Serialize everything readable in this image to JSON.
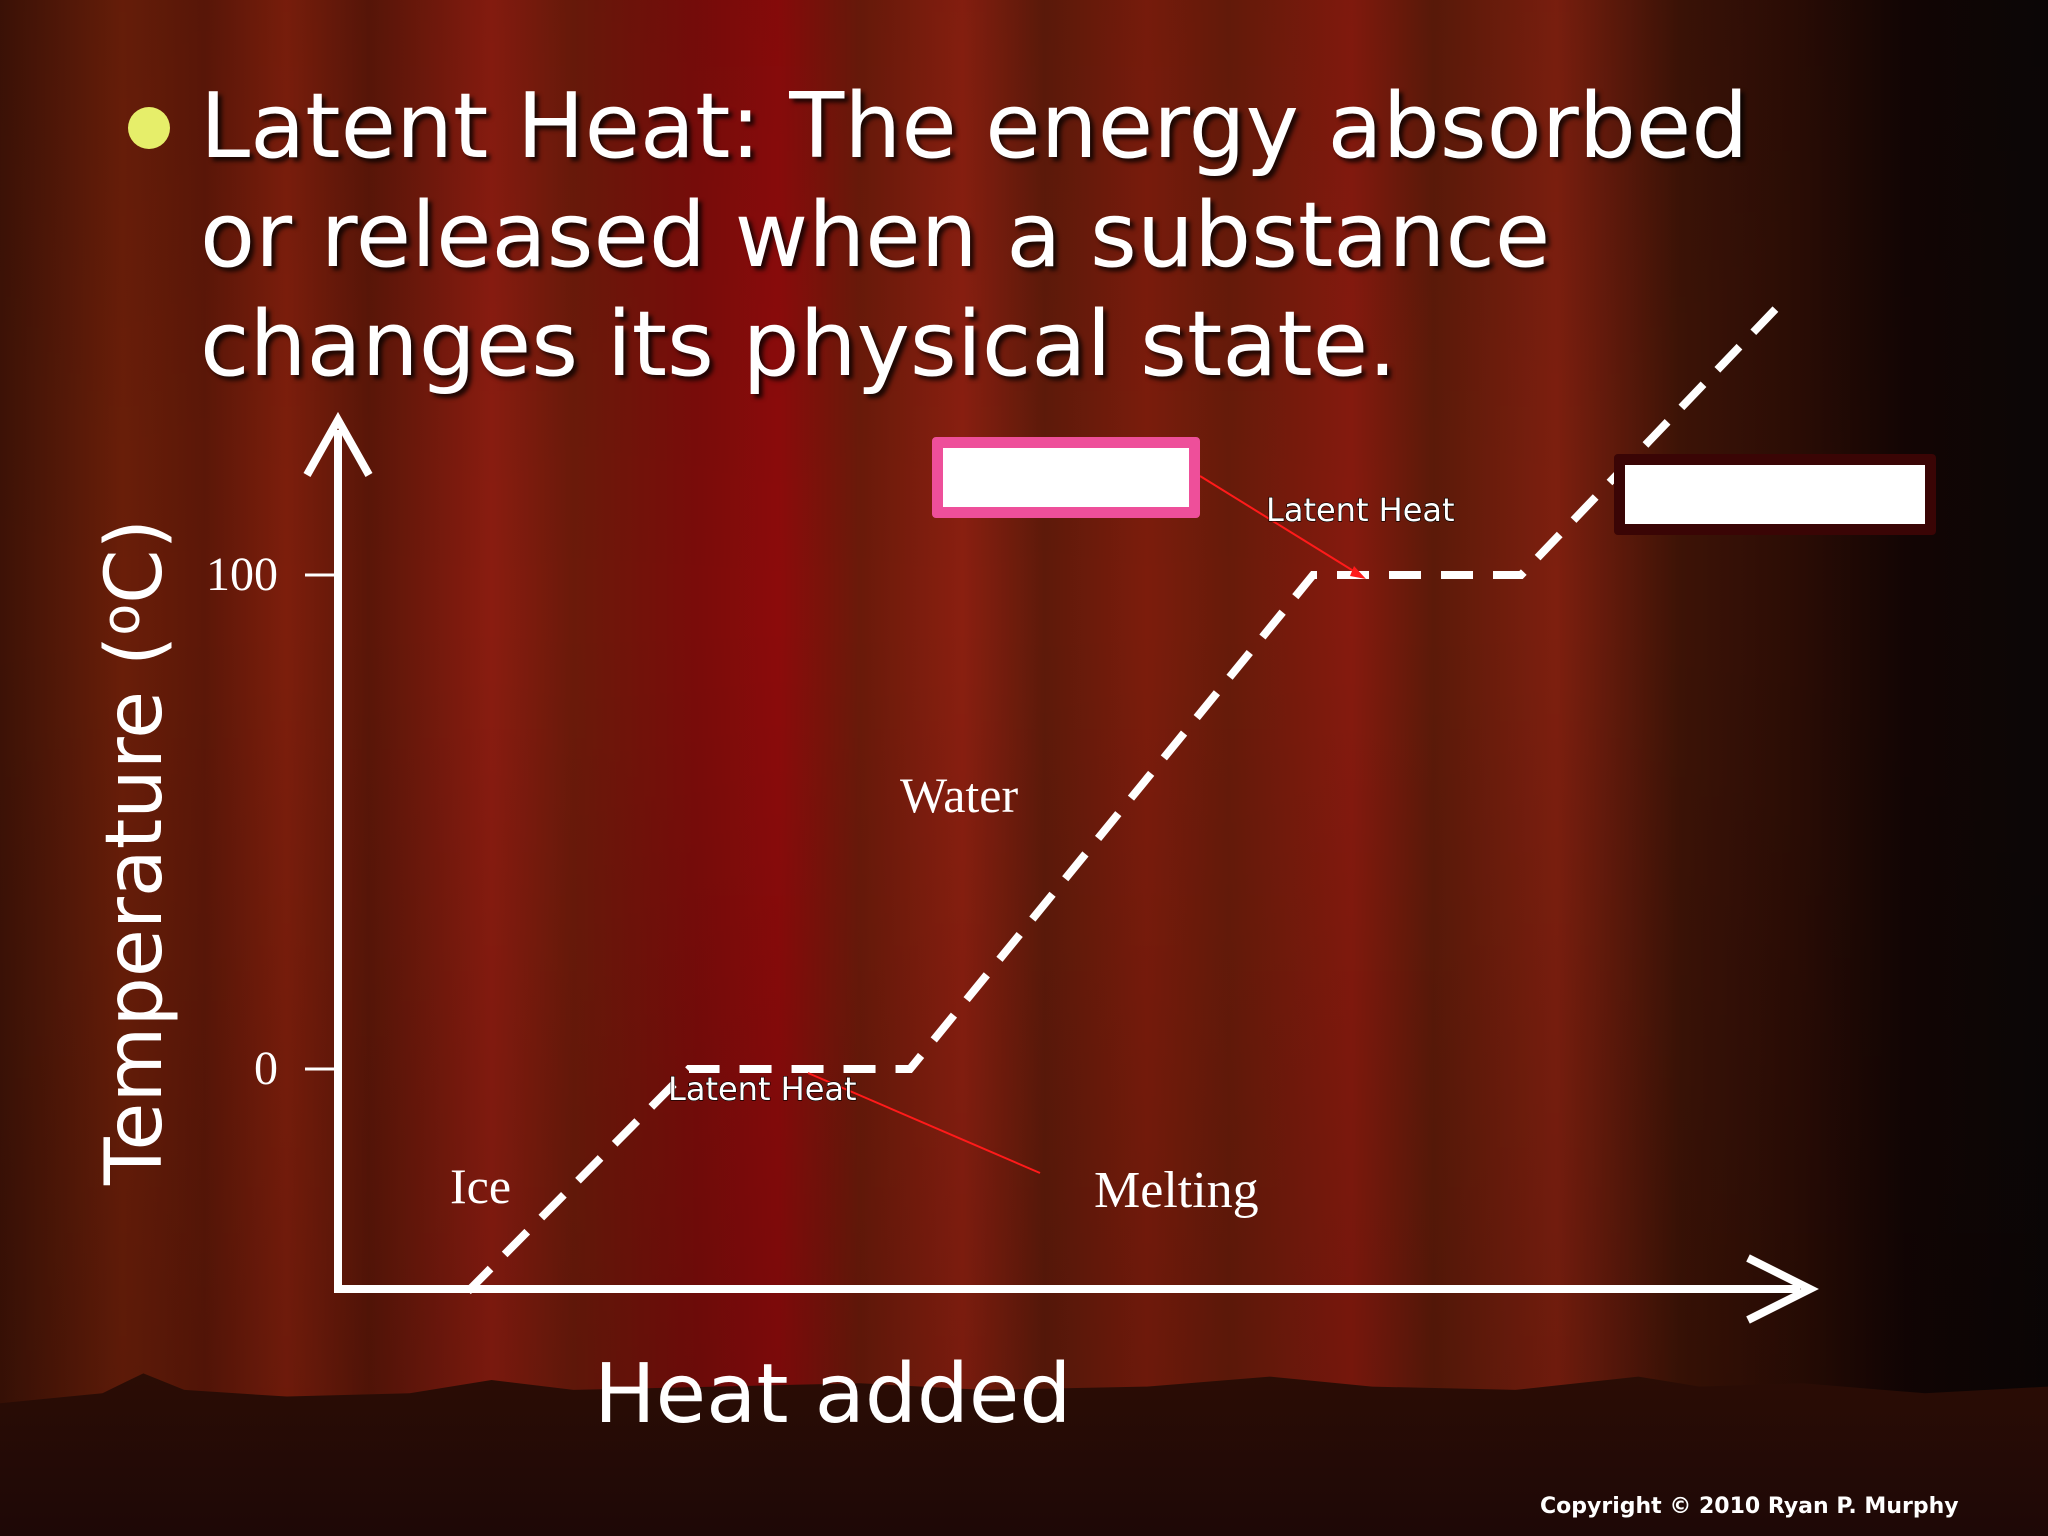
{
  "slide": {
    "title": "Latent Heat: The energy absorbed or released when a substance changes its physical state.",
    "copyright": "Copyright © 2010 Ryan P. Murphy"
  },
  "chart_data": {
    "type": "line",
    "title": "",
    "xlabel": "Heat added",
    "ylabel_main": "Temperature (",
    "ylabel_sup": "o",
    "ylabel_tail": "C)",
    "y_ticks": [
      "100",
      "0"
    ],
    "annotations": {
      "ice": "Ice",
      "water": "Water",
      "melting": "Melting",
      "latent_heat_melting": "Latent Heat",
      "latent_heat_boiling": "Latent Heat"
    },
    "series": [
      {
        "style": "dashed",
        "color": "#ffffff",
        "points": [
          {
            "x": 1.0,
            "y": -45
          },
          {
            "x": 2.7,
            "y": 0
          },
          {
            "x": 4.4,
            "y": 0
          },
          {
            "x": 7.5,
            "y": 100
          },
          {
            "x": 9.1,
            "y": 100
          },
          {
            "x": 11.1,
            "y": 155
          }
        ]
      }
    ],
    "blank_label_boxes": 2,
    "colors": {
      "box1_border": "#ee4f9a",
      "box2_border": "#3a0505",
      "pointer": "#ff1a1a"
    }
  }
}
